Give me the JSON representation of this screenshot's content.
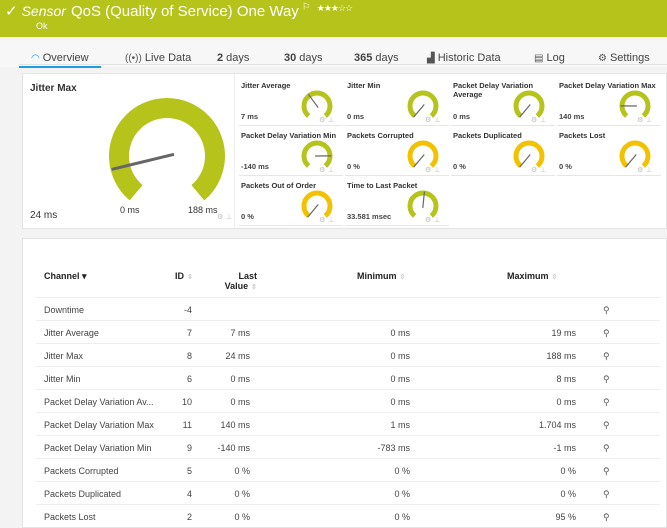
{
  "header": {
    "kind": "Sensor",
    "title": "QoS (Quality of Service) One Way",
    "flag_icon": "flag-icon",
    "stars": "★★★☆☆",
    "status": "Ok",
    "color": "#b5c31b"
  },
  "tabs": [
    {
      "label": "Overview",
      "icon": "gauge-icon"
    },
    {
      "label": "Live Data",
      "icon": "live-icon"
    },
    {
      "num": "2",
      "label": "days"
    },
    {
      "num": "30",
      "label": "days"
    },
    {
      "num": "365",
      "label": "days"
    },
    {
      "label": "Historic Data",
      "icon": "chart-icon"
    },
    {
      "label": "Log",
      "icon": "log-icon"
    },
    {
      "label": "Settings",
      "icon": "gear-icon"
    }
  ],
  "big_gauge": {
    "label": "Jitter Max",
    "value": "24 ms",
    "min": "0 ms",
    "max": "188 ms",
    "level": 0.13,
    "color": "#b5c31b"
  },
  "gauges": [
    {
      "label": "Jitter Average",
      "value": "7 ms",
      "level": 0.37,
      "color": "#b5c31b"
    },
    {
      "label": "Jitter Min",
      "value": "0 ms",
      "level": 0,
      "color": "#b5c31b"
    },
    {
      "label": "Packet Delay Variation Average",
      "value": "0 ms",
      "level": 0,
      "color": "#b5c31b"
    },
    {
      "label": "Packet Delay Variation Max",
      "value": "140 ms",
      "level": 0.18,
      "color": "#b5c31b"
    },
    {
      "label": "Packet Delay Variation Min",
      "value": "-140 ms",
      "level": 0.82,
      "color": "#b5c31b"
    },
    {
      "label": "Packets Corrupted",
      "value": "0 %",
      "level": 0,
      "color": "#f2c200"
    },
    {
      "label": "Packets Duplicated",
      "value": "0 %",
      "level": 0,
      "color": "#f2c200"
    },
    {
      "label": "Packets Lost",
      "value": "0 %",
      "level": 0,
      "color": "#f2c200"
    },
    {
      "label": "Packets Out of Order",
      "value": "0 %",
      "level": 0,
      "color": "#f2c200"
    },
    {
      "label": "Time to Last Packet",
      "value": "33.581 msec",
      "level": 0.52,
      "color": "#b5c31b"
    }
  ],
  "table": {
    "headers": {
      "channel": "Channel",
      "id": "ID",
      "last1": "Last",
      "last2": "Value",
      "min": "Minimum",
      "max": "Maximum"
    },
    "rows": [
      {
        "channel": "Downtime",
        "id": "-4",
        "last": "",
        "min": "",
        "max": ""
      },
      {
        "channel": "Jitter Average",
        "id": "7",
        "last": "7 ms",
        "min": "0 ms",
        "max": "19 ms"
      },
      {
        "channel": "Jitter Max",
        "id": "8",
        "last": "24 ms",
        "min": "0 ms",
        "max": "188 ms"
      },
      {
        "channel": "Jitter Min",
        "id": "6",
        "last": "0 ms",
        "min": "0 ms",
        "max": "8 ms"
      },
      {
        "channel": "Packet Delay Variation Av...",
        "id": "10",
        "last": "0 ms",
        "min": "0 ms",
        "max": "0 ms"
      },
      {
        "channel": "Packet Delay Variation Max",
        "id": "11",
        "last": "140 ms",
        "min": "1 ms",
        "max": "1.704 ms"
      },
      {
        "channel": "Packet Delay Variation Min",
        "id": "9",
        "last": "-140 ms",
        "min": "-783 ms",
        "max": "-1 ms"
      },
      {
        "channel": "Packets Corrupted",
        "id": "5",
        "last": "0 %",
        "min": "0 %",
        "max": "0 %"
      },
      {
        "channel": "Packets Duplicated",
        "id": "4",
        "last": "0 %",
        "min": "0 %",
        "max": "0 %"
      },
      {
        "channel": "Packets Lost",
        "id": "2",
        "last": "0 %",
        "min": "0 %",
        "max": "95 %"
      }
    ]
  }
}
